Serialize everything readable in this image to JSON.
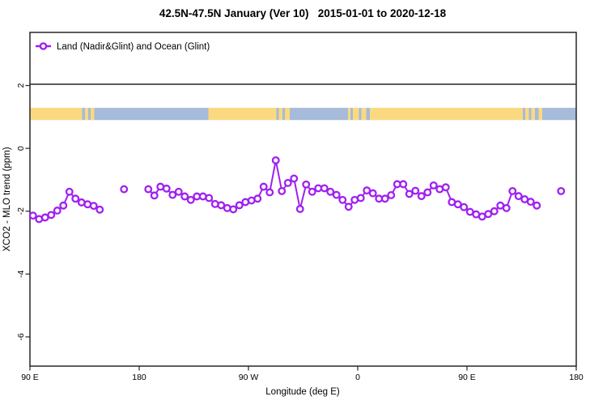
{
  "chart_data": {
    "type": "scatter",
    "title": "42.5N-47.5N January (Ver 10)   2015-01-01 to 2020-12-18",
    "xlabel": "Longitude (deg E)",
    "ylabel": "XCO2 - MLO trend (ppm)",
    "grid": false,
    "legend_position": "top-left-strip",
    "legend": [
      {
        "label": "Land (Nadir&Glint) and Ocean (Glint)",
        "color": "#A020F0",
        "marker": "open-circle-on-line"
      }
    ],
    "x_domain": [
      90,
      540
    ],
    "y_domain": [
      -6.93,
      3.69
    ],
    "x_ticks": [
      {
        "v": 90,
        "label": "90 E"
      },
      {
        "v": 180,
        "label": "180"
      },
      {
        "v": 270,
        "label": "90 W"
      },
      {
        "v": 360,
        "label": "0"
      },
      {
        "v": 450,
        "label": "90 E"
      },
      {
        "v": 540,
        "label": "180"
      }
    ],
    "y_ticks": [
      {
        "v": 2,
        "label": "2"
      },
      {
        "v": 0,
        "label": "0"
      },
      {
        "v": -2,
        "label": "-2"
      },
      {
        "v": -4,
        "label": "-4"
      },
      {
        "v": -6,
        "label": "-6"
      }
    ],
    "land_ocean_band": {
      "y_value_range": [
        0.9,
        1.29
      ],
      "colors": {
        "land": "#FAD980",
        "ocean": "#A6BBD9"
      },
      "segments": [
        {
          "from": 90,
          "to": 133,
          "type": "land"
        },
        {
          "from": 133,
          "to": 135.5,
          "type": "ocean"
        },
        {
          "from": 135.5,
          "to": 138,
          "type": "land"
        },
        {
          "from": 138,
          "to": 140,
          "type": "ocean"
        },
        {
          "from": 140,
          "to": 143,
          "type": "land"
        },
        {
          "from": 143,
          "to": 237,
          "type": "ocean"
        },
        {
          "from": 237,
          "to": 293,
          "type": "land"
        },
        {
          "from": 293,
          "to": 295,
          "type": "ocean"
        },
        {
          "from": 295,
          "to": 298,
          "type": "land"
        },
        {
          "from": 298,
          "to": 300,
          "type": "ocean"
        },
        {
          "from": 300,
          "to": 304,
          "type": "land"
        },
        {
          "from": 304,
          "to": 352,
          "type": "ocean"
        },
        {
          "from": 352,
          "to": 354,
          "type": "land"
        },
        {
          "from": 354,
          "to": 356,
          "type": "ocean"
        },
        {
          "from": 356,
          "to": 361,
          "type": "land"
        },
        {
          "from": 361,
          "to": 363,
          "type": "ocean"
        },
        {
          "from": 363,
          "to": 367,
          "type": "land"
        },
        {
          "from": 367,
          "to": 370,
          "type": "ocean"
        },
        {
          "from": 370,
          "to": 496,
          "type": "land"
        },
        {
          "from": 496,
          "to": 498,
          "type": "ocean"
        },
        {
          "from": 498,
          "to": 501,
          "type": "land"
        },
        {
          "from": 501,
          "to": 503,
          "type": "ocean"
        },
        {
          "from": 503,
          "to": 506,
          "type": "land"
        },
        {
          "from": 506,
          "to": 509,
          "type": "ocean"
        },
        {
          "from": 509,
          "to": 512,
          "type": "land"
        },
        {
          "from": 512,
          "to": 540,
          "type": "ocean"
        }
      ]
    },
    "series": [
      {
        "name": "Land (Nadir&Glint) and Ocean (Glint)",
        "color": "#A020F0",
        "marker": "open-circle",
        "connect_max_gap_deg": 6,
        "points": [
          [
            92.5,
            -2.14
          ],
          [
            97.5,
            -2.25
          ],
          [
            102.5,
            -2.2
          ],
          [
            107.5,
            -2.12
          ],
          [
            112.5,
            -1.98
          ],
          [
            117.5,
            -1.82
          ],
          [
            122.5,
            -1.38
          ],
          [
            127.5,
            -1.6
          ],
          [
            132.5,
            -1.72
          ],
          [
            137.5,
            -1.78
          ],
          [
            142.5,
            -1.83
          ],
          [
            147.5,
            -1.95
          ],
          [
            167.5,
            -1.3
          ],
          [
            187.5,
            -1.3
          ],
          [
            192.5,
            -1.5
          ],
          [
            197.5,
            -1.22
          ],
          [
            202.5,
            -1.28
          ],
          [
            207.5,
            -1.48
          ],
          [
            212.5,
            -1.38
          ],
          [
            217.5,
            -1.53
          ],
          [
            222.5,
            -1.64
          ],
          [
            227.5,
            -1.53
          ],
          [
            232.5,
            -1.53
          ],
          [
            237.5,
            -1.58
          ],
          [
            242.5,
            -1.77
          ],
          [
            247.5,
            -1.81
          ],
          [
            252.5,
            -1.9
          ],
          [
            257.5,
            -1.94
          ],
          [
            262.5,
            -1.81
          ],
          [
            267.5,
            -1.71
          ],
          [
            272.5,
            -1.66
          ],
          [
            277.5,
            -1.6
          ],
          [
            282.5,
            -1.22
          ],
          [
            287.5,
            -1.4
          ],
          [
            292.5,
            -0.38
          ],
          [
            297.5,
            -1.36
          ],
          [
            302.5,
            -1.1
          ],
          [
            307.5,
            -0.96
          ],
          [
            312.5,
            -1.93
          ],
          [
            317.5,
            -1.15
          ],
          [
            322.5,
            -1.38
          ],
          [
            327.5,
            -1.27
          ],
          [
            332.5,
            -1.27
          ],
          [
            337.5,
            -1.38
          ],
          [
            342.5,
            -1.48
          ],
          [
            347.5,
            -1.64
          ],
          [
            352.5,
            -1.86
          ],
          [
            357.5,
            -1.64
          ],
          [
            362.5,
            -1.58
          ],
          [
            367.5,
            -1.34
          ],
          [
            372.5,
            -1.43
          ],
          [
            377.5,
            -1.6
          ],
          [
            382.5,
            -1.6
          ],
          [
            387.5,
            -1.49
          ],
          [
            392.5,
            -1.14
          ],
          [
            397.5,
            -1.14
          ],
          [
            402.5,
            -1.45
          ],
          [
            407.5,
            -1.35
          ],
          [
            412.5,
            -1.52
          ],
          [
            417.5,
            -1.4
          ],
          [
            422.5,
            -1.18
          ],
          [
            427.5,
            -1.3
          ],
          [
            432.5,
            -1.24
          ],
          [
            437.5,
            -1.71
          ],
          [
            442.5,
            -1.78
          ],
          [
            447.5,
            -1.87
          ],
          [
            452.5,
            -2.02
          ],
          [
            457.5,
            -2.1
          ],
          [
            462.5,
            -2.17
          ],
          [
            467.5,
            -2.09
          ],
          [
            472.5,
            -2.0
          ],
          [
            477.5,
            -1.82
          ],
          [
            482.5,
            -1.9
          ],
          [
            487.5,
            -1.36
          ],
          [
            492.5,
            -1.52
          ],
          [
            497.5,
            -1.62
          ],
          [
            502.5,
            -1.7
          ],
          [
            507.5,
            -1.82
          ],
          [
            527.5,
            -1.36
          ]
        ]
      }
    ]
  }
}
